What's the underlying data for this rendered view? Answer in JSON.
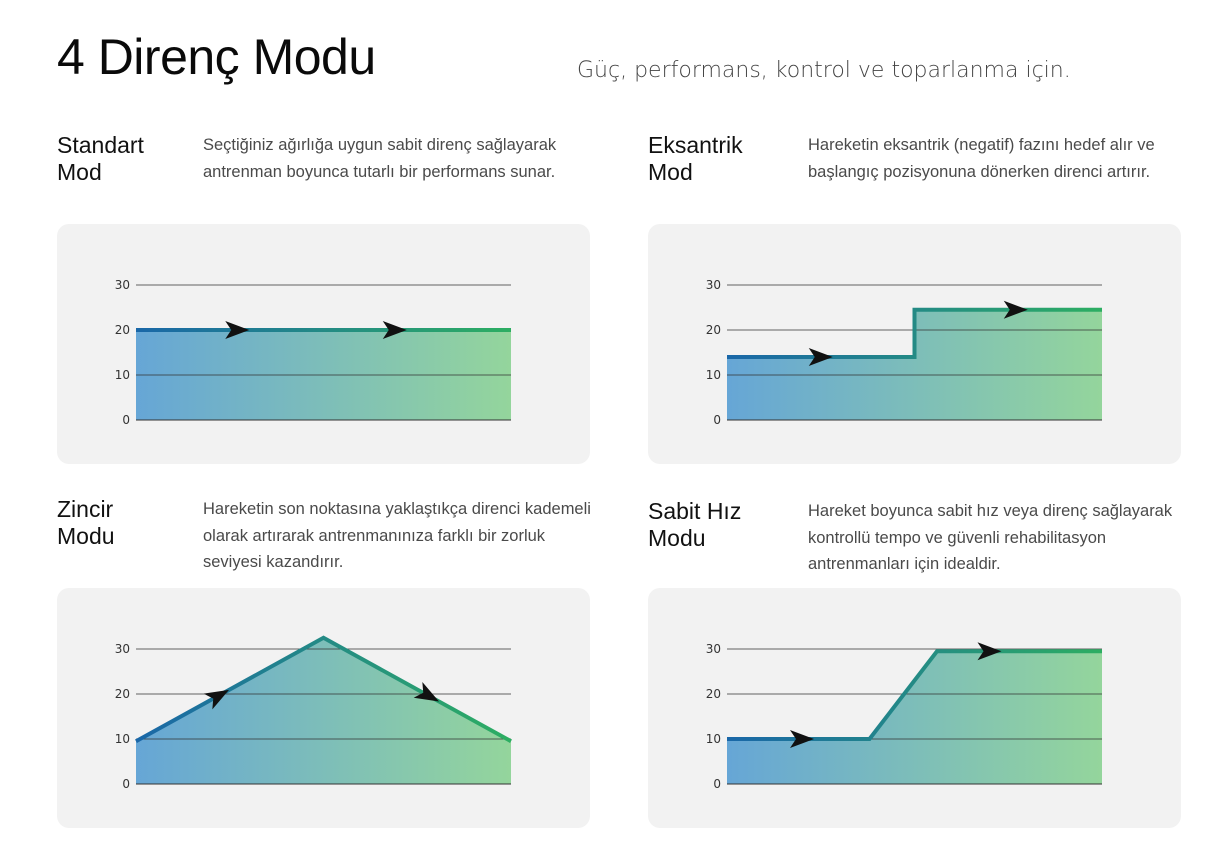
{
  "header": {
    "title": "4 Direnç Modu",
    "subtitle": "Güç, performans, kontrol ve toparlanma için."
  },
  "colors": {
    "line_start": "#1a67a8",
    "line_end": "#2dae62",
    "fill_start": "#66a6d6",
    "fill_end": "#94d59c",
    "panel_bg": "#f2f2f2",
    "arrow": "#111111"
  },
  "modes": [
    {
      "title": "Standart Mod",
      "title_lines": [
        "Standart",
        "Mod"
      ],
      "description": "Seçtiğiniz ağırlığa uygun sabit direnç sağlayarak antrenman boyunca tutarlı bir performans sunar."
    },
    {
      "title": "Eksantrik Mod",
      "title_lines": [
        "Eksantrik",
        "Mod"
      ],
      "description": "Hareketin eksantrik (negatif) fazını hedef alır ve başlangıç pozisyonuna dönerken direnci artırır."
    },
    {
      "title": "Zincir Modu",
      "title_lines": [
        "Zincir",
        "Modu"
      ],
      "description": "Hareketin son noktasına yaklaştıkça direnci kademeli olarak artırarak antrenmanınıza farklı bir zorluk seviyesi kazandırır."
    },
    {
      "title": "Sabit Hız Modu",
      "title_lines": [
        "Sabit Hız",
        "Modu"
      ],
      "description": "Hareket boyunca sabit hız veya direnç sağlayarak kontrollü tempo ve güvenli rehabilitasyon antrenmanları için idealdir."
    }
  ],
  "chart_data": [
    {
      "type": "line",
      "yticks": [
        "30",
        "20",
        "10",
        "0"
      ],
      "ylim": [
        0,
        30
      ],
      "xlim": [
        0,
        1
      ],
      "x": [
        0,
        1
      ],
      "y": [
        20,
        20
      ],
      "arrows": [
        0.27,
        0.69
      ],
      "grid": true
    },
    {
      "type": "line",
      "yticks": [
        "30",
        "20",
        "10",
        "0"
      ],
      "ylim": [
        0,
        30
      ],
      "xlim": [
        0,
        1
      ],
      "x": [
        0,
        0.5,
        0.5,
        1
      ],
      "y": [
        14,
        14,
        24.5,
        24.5
      ],
      "arrows": [
        0.25,
        0.77
      ],
      "grid": true
    },
    {
      "type": "line",
      "yticks": [
        "30",
        "20",
        "10",
        "0"
      ],
      "ylim": [
        0,
        30
      ],
      "xlim": [
        0,
        1
      ],
      "x": [
        0,
        0.5,
        1
      ],
      "y": [
        9.5,
        32.5,
        9.5
      ],
      "arrows": [
        0.22,
        0.78
      ],
      "grid": true
    },
    {
      "type": "line",
      "yticks": [
        "30",
        "20",
        "10",
        "0"
      ],
      "ylim": [
        0,
        30
      ],
      "xlim": [
        0,
        1
      ],
      "x": [
        0,
        0.38,
        0.56,
        1
      ],
      "y": [
        10,
        10,
        29.5,
        29.5
      ],
      "arrows": [
        0.2,
        0.7
      ],
      "grid": true
    }
  ]
}
